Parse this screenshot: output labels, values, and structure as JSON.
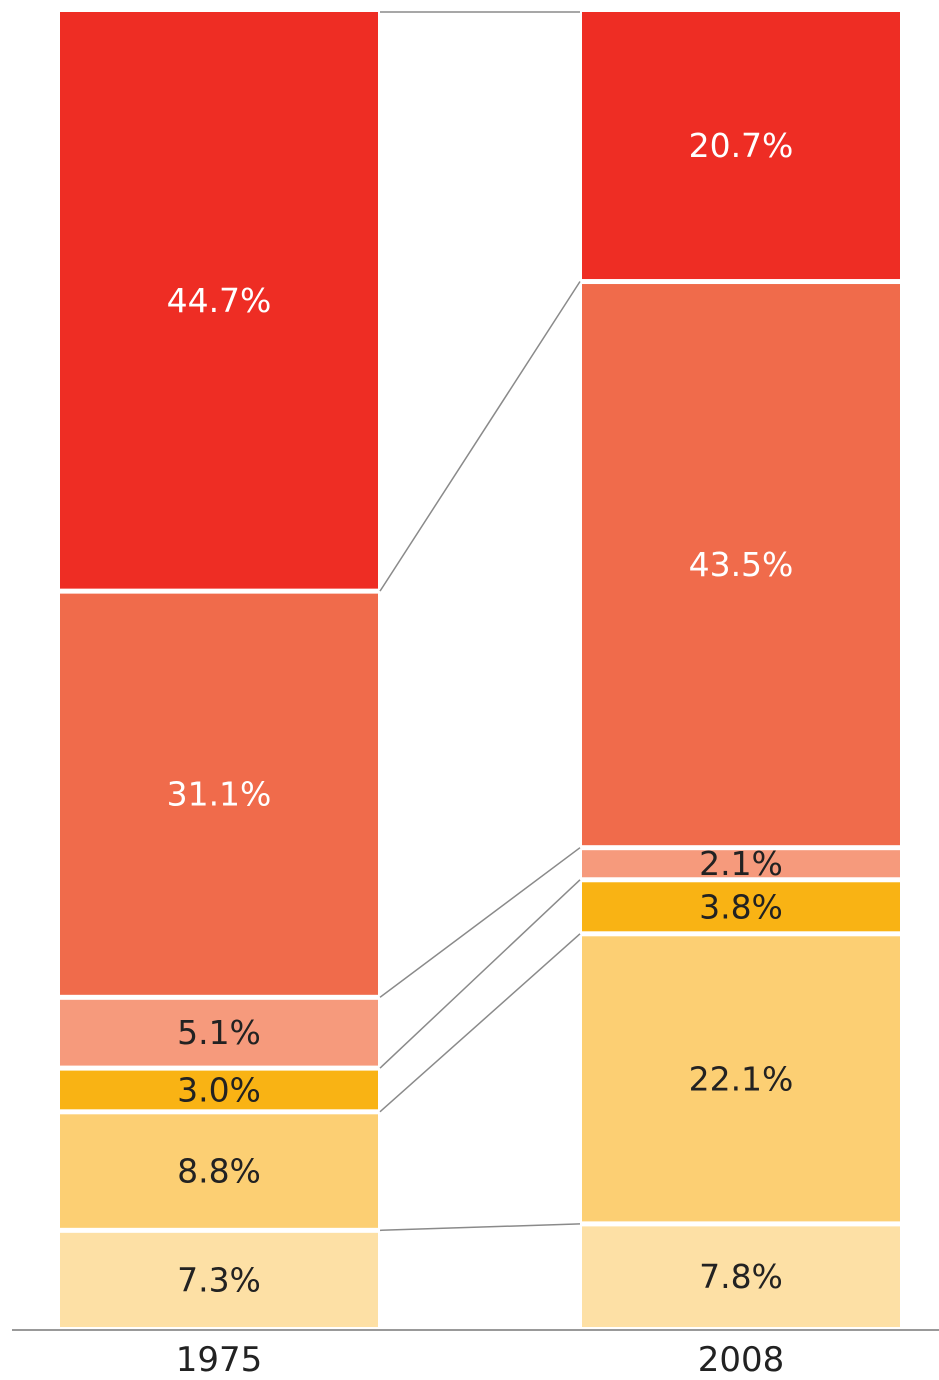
{
  "chart_data": {
    "type": "bar",
    "stacked": true,
    "categories": [
      "1975",
      "2008"
    ],
    "series": [
      {
        "values": [
          44.7,
          20.7
        ],
        "labels": [
          "44.7%",
          "20.7%"
        ],
        "color": "#ee2d24",
        "label_color": "#ffffff"
      },
      {
        "values": [
          31.1,
          43.5
        ],
        "labels": [
          "31.1%",
          "43.5%"
        ],
        "color": "#f06b4b",
        "label_color": "#ffffff"
      },
      {
        "values": [
          5.1,
          2.1
        ],
        "labels": [
          "5.1%",
          "2.1%"
        ],
        "color": "#f69a7c",
        "label_color": "#222222"
      },
      {
        "values": [
          3.0,
          3.8
        ],
        "labels": [
          "3.0%",
          "3.8%"
        ],
        "color": "#f9b314",
        "label_color": "#222222"
      },
      {
        "values": [
          8.8,
          22.1
        ],
        "labels": [
          "8.8%",
          "22.1%"
        ],
        "color": "#fccf73",
        "label_color": "#222222"
      },
      {
        "values": [
          7.3,
          7.8
        ],
        "labels": [
          "7.3%",
          "7.8%"
        ],
        "color": "#fde0a5",
        "label_color": "#222222"
      }
    ],
    "connectors": true,
    "title": "",
    "xlabel": "",
    "ylabel": "",
    "grid": false,
    "legend": "none",
    "ylim": [
      0,
      100
    ]
  }
}
